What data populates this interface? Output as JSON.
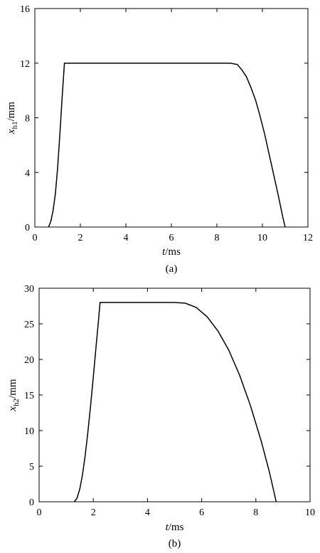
{
  "chart_data": [
    {
      "type": "line",
      "caption": "(a)",
      "xlabel_italic": "t",
      "xlabel_rest": "/ms",
      "ylabel_italic": "x",
      "ylabel_sub": "h1",
      "ylabel_rest": "/mm",
      "xlim": [
        0,
        12
      ],
      "ylim": [
        0,
        16
      ],
      "xticks": [
        0,
        2,
        4,
        6,
        8,
        10,
        12
      ],
      "yticks": [
        0,
        4,
        8,
        12,
        16
      ],
      "series": [
        {
          "x": [
            0.6,
            0.7,
            0.8,
            0.9,
            1.0,
            1.1,
            1.2,
            1.3,
            2.0,
            4.0,
            6.0,
            8.0,
            8.6,
            8.9,
            9.1,
            9.3,
            9.5,
            9.7,
            9.9,
            10.1,
            10.3,
            10.5,
            10.7,
            10.9,
            11.0
          ],
          "y": [
            0,
            0.4,
            1.2,
            2.4,
            4.3,
            6.8,
            9.5,
            12.0,
            12.0,
            12.0,
            12.0,
            12.0,
            12.0,
            11.9,
            11.5,
            11.0,
            10.2,
            9.3,
            8.1,
            6.8,
            5.3,
            3.8,
            2.3,
            0.7,
            0
          ]
        }
      ]
    },
    {
      "type": "line",
      "caption": "(b)",
      "xlabel_italic": "t",
      "xlabel_rest": "/ms",
      "ylabel_italic": "x",
      "ylabel_sub": "h2",
      "ylabel_rest": "/mm",
      "xlim": [
        0,
        10
      ],
      "ylim": [
        0,
        30
      ],
      "xticks": [
        0,
        2,
        4,
        6,
        8,
        10
      ],
      "yticks": [
        0,
        5,
        10,
        15,
        20,
        25,
        30
      ],
      "series": [
        {
          "x": [
            1.3,
            1.4,
            1.5,
            1.6,
            1.7,
            1.8,
            1.9,
            2.0,
            2.1,
            2.2,
            2.25,
            3.0,
            4.0,
            5.0,
            5.4,
            5.8,
            6.2,
            6.6,
            7.0,
            7.4,
            7.8,
            8.2,
            8.5,
            8.75
          ],
          "y": [
            0,
            0.5,
            1.8,
            3.8,
            6.5,
            9.8,
            13.5,
            17.5,
            21.7,
            25.8,
            28.0,
            28.0,
            28.0,
            28.0,
            27.9,
            27.3,
            26.0,
            24.0,
            21.3,
            17.8,
            13.5,
            8.5,
            4.2,
            0
          ]
        }
      ]
    }
  ]
}
